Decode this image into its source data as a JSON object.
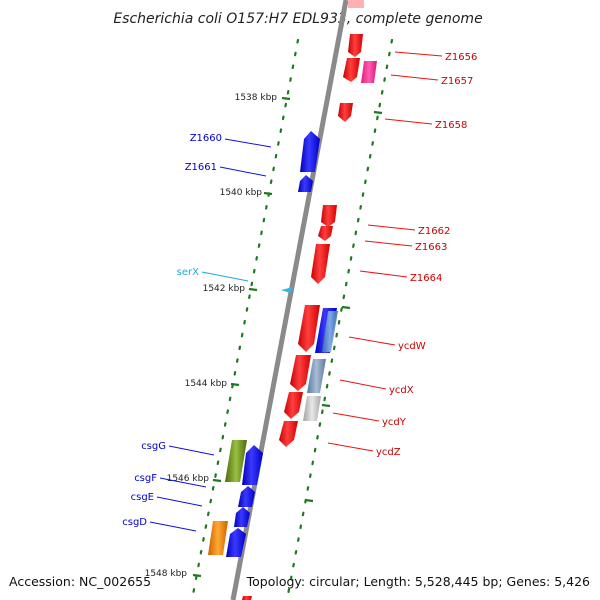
{
  "title": "Escherichia coli O157:H7 EDL933, complete genome",
  "footer": {
    "accession": "Accession: NC_002655",
    "topology": "Topology: circular; Length: 5,528,445 bp; Genes: 5,426"
  },
  "scale": {
    "unit": "kbp",
    "ticks": [
      "1538 kbp",
      "1540 kbp",
      "1542 kbp",
      "1544 kbp",
      "1546 kbp",
      "1548 kbp"
    ]
  },
  "colors": {
    "backbone": "#8a8a8a",
    "forward_gene": "#ee1111",
    "reverse_gene": "#1111dd",
    "trna": "#33b7e8",
    "tick_green": "#1f7a1f",
    "label_forward": "#cc0000",
    "label_reverse": "#0000cc",
    "label_trna": "#22a8d8"
  },
  "labels": {
    "forward": [
      "Z1656",
      "Z1657",
      "Z1658",
      "Z1662",
      "Z1663",
      "Z1664",
      "ycdW",
      "ycdX",
      "ycdY",
      "ycdZ"
    ],
    "reverse": [
      "Z1660",
      "Z1661",
      "csgG",
      "csgF",
      "csgE",
      "csgD"
    ],
    "trna": [
      "serX"
    ]
  }
}
